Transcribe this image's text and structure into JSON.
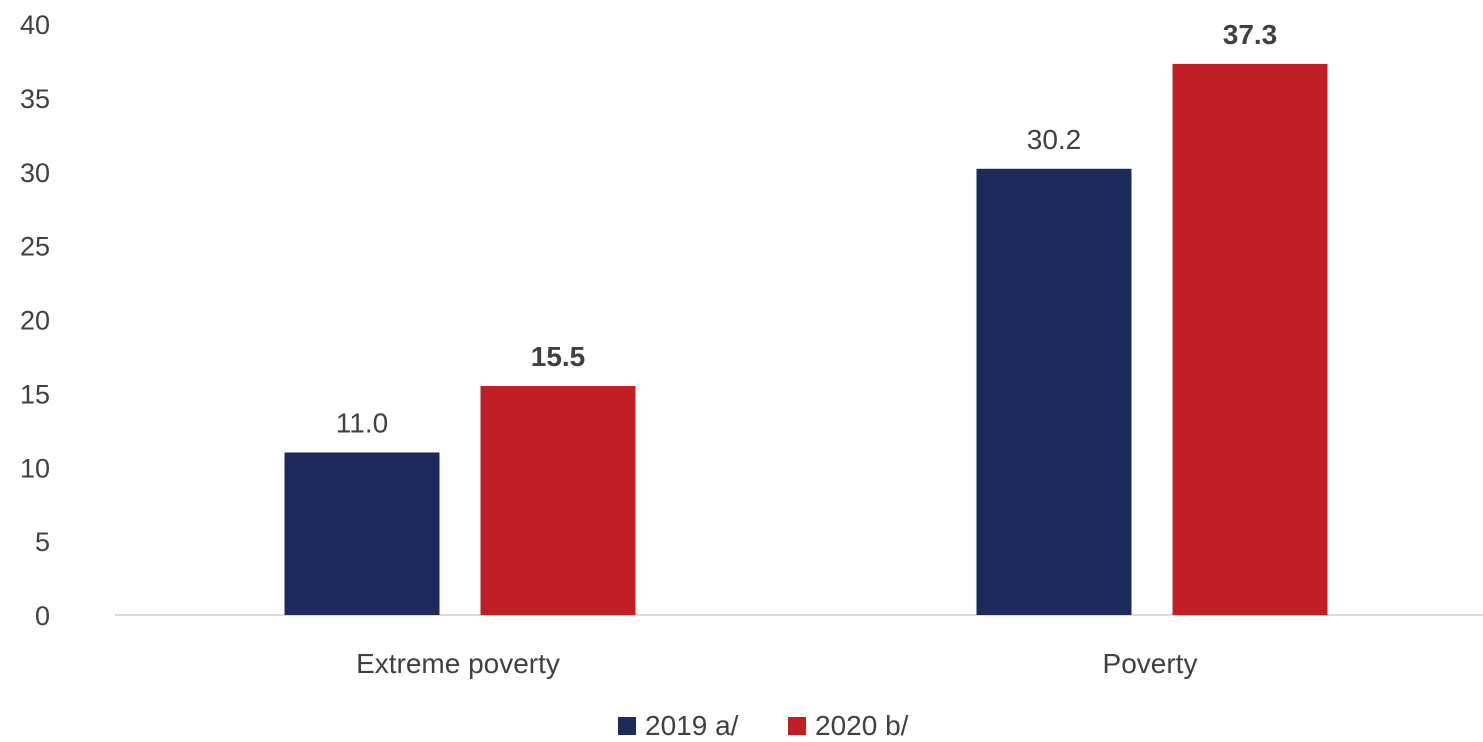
{
  "chart_data": {
    "type": "bar",
    "categories": [
      "Extreme poverty",
      "Poverty"
    ],
    "series": [
      {
        "name": "2019 a/",
        "values": [
          11.0,
          30.2
        ],
        "color": "#1f2a5c",
        "label_bold": false
      },
      {
        "name": "2020 b/",
        "values": [
          15.5,
          37.3
        ],
        "color": "#c01f26",
        "label_bold": true
      }
    ],
    "data_labels": [
      [
        "11.0",
        "30.2"
      ],
      [
        "15.5",
        "37.3"
      ]
    ],
    "y_ticks": [
      "0",
      "5",
      "10",
      "15",
      "20",
      "25",
      "30",
      "35",
      "40"
    ],
    "ylim": [
      0,
      40
    ],
    "grid": false,
    "legend_position": "bottom-center",
    "axis_color": "#d9d9d9"
  }
}
